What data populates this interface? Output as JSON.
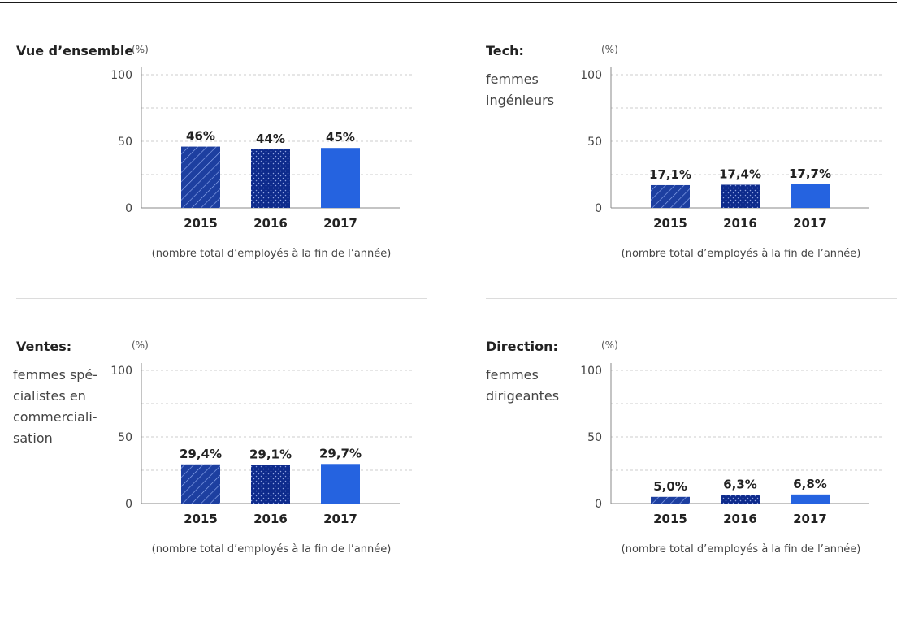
{
  "footnote_default": "(nombre total d’employés à la fin de l’année)",
  "colors": {
    "s2015": "#1d3fa0",
    "s2016": "#0e2b8c",
    "s2017": "#2563e0",
    "text": "#222222",
    "grid": "#cccccc",
    "axis": "#888888"
  },
  "chart_data": [
    {
      "type": "bar",
      "title": "Vue d’ensemble",
      "subtitle": "",
      "unit_label": "(%)",
      "categories": [
        "2015",
        "2016",
        "2017"
      ],
      "values": [
        46,
        44,
        45
      ],
      "labels": [
        "46%",
        "44%",
        "45%"
      ],
      "yticks": [
        0,
        50,
        100
      ],
      "ylim": [
        0,
        100
      ],
      "grid": "dashed, every 25",
      "footnote": "(nombre total d’employés à la fin de l’année)"
    },
    {
      "type": "bar",
      "title": "Tech:",
      "subtitle": "femmes\ningénieurs",
      "unit_label": "(%)",
      "categories": [
        "2015",
        "2016",
        "2017"
      ],
      "values": [
        17.1,
        17.4,
        17.7
      ],
      "labels": [
        "17,1%",
        "17,4%",
        "17,7%"
      ],
      "yticks": [
        0,
        50,
        100
      ],
      "ylim": [
        0,
        100
      ],
      "grid": "dashed, every 25",
      "footnote": "(nombre total d’employés à la fin de l’année)"
    },
    {
      "type": "bar",
      "title": "Ventes:",
      "subtitle": "femmes spé-\ncialistes en\ncommerciali-\nsation",
      "unit_label": "(%)",
      "categories": [
        "2015",
        "2016",
        "2017"
      ],
      "values": [
        29.4,
        29.1,
        29.7
      ],
      "labels": [
        "29,4%",
        "29,1%",
        "29,7%"
      ],
      "yticks": [
        0,
        50,
        100
      ],
      "ylim": [
        0,
        100
      ],
      "grid": "dashed, every 25",
      "footnote": "(nombre total d’employés à la fin de l’année)"
    },
    {
      "type": "bar",
      "title": "Direction:",
      "subtitle": "femmes\ndirigeantes",
      "unit_label": "(%)",
      "categories": [
        "2015",
        "2016",
        "2017"
      ],
      "values": [
        5.0,
        6.3,
        6.8
      ],
      "labels": [
        "5,0%",
        "6,3%",
        "6,8%"
      ],
      "yticks": [
        0,
        50,
        100
      ],
      "ylim": [
        0,
        100
      ],
      "grid": "dashed, every 25",
      "footnote": "(nombre total d’employés à la fin de l’année)"
    }
  ]
}
